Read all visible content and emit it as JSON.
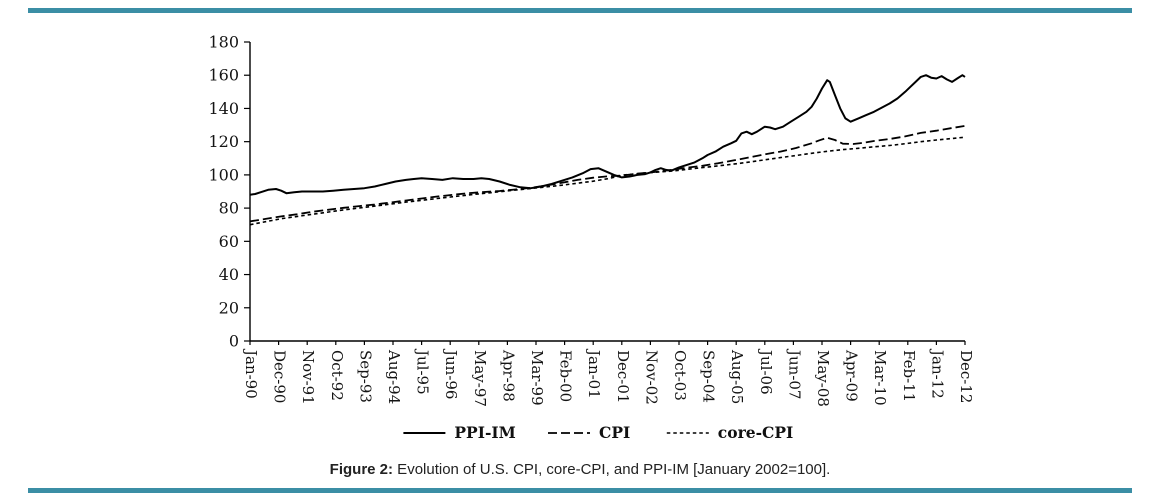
{
  "page": {
    "accent_color": "#3b8ea5"
  },
  "caption": {
    "prefix": "Figure 2:",
    "text": " Evolution of U.S. CPI, core-CPI, and PPI-IM [January 2002=100]."
  },
  "chart_data": {
    "type": "line",
    "title": "",
    "xlabel": "",
    "ylabel": "",
    "grid": false,
    "legend_position": "bottom",
    "ylim": [
      0,
      180
    ],
    "y_ticks": [
      0,
      20,
      40,
      60,
      80,
      100,
      120,
      140,
      160,
      180
    ],
    "x_unit": "months_since_Jan-90",
    "x_range": [
      0,
      275
    ],
    "x_tick_months": [
      0,
      11,
      22,
      33,
      44,
      55,
      66,
      77,
      88,
      99,
      110,
      121,
      132,
      143,
      154,
      165,
      176,
      187,
      198,
      209,
      220,
      231,
      242,
      253,
      264,
      275
    ],
    "x_tick_labels": [
      "Jan-90",
      "Dec-90",
      "Nov-91",
      "Oct-92",
      "Sep-93",
      "Aug-94",
      "Jul-95",
      "Jun-96",
      "May-97",
      "Apr-98",
      "Mar-99",
      "Feb-00",
      "Jan-01",
      "Dec-01",
      "Nov-02",
      "Oct-03",
      "Sep-04",
      "Aug-05",
      "Jul-06",
      "Jun-07",
      "May-08",
      "Apr-09",
      "Mar-10",
      "Feb-11",
      "Jan-12",
      "Dec-12"
    ],
    "series": [
      {
        "name": "PPI-IM",
        "style": "solid",
        "dash": "",
        "width": 2,
        "color": "#000000",
        "points": [
          [
            0,
            88
          ],
          [
            2,
            88.5
          ],
          [
            4,
            89.5
          ],
          [
            7,
            91
          ],
          [
            10,
            91.5
          ],
          [
            12,
            90.5
          ],
          [
            14,
            89
          ],
          [
            17,
            89.5
          ],
          [
            20,
            90
          ],
          [
            24,
            90
          ],
          [
            28,
            90
          ],
          [
            32,
            90.5
          ],
          [
            36,
            91
          ],
          [
            40,
            91.5
          ],
          [
            44,
            92
          ],
          [
            48,
            93
          ],
          [
            52,
            94.5
          ],
          [
            56,
            96
          ],
          [
            60,
            97
          ],
          [
            63,
            97.5
          ],
          [
            66,
            98
          ],
          [
            70,
            97.5
          ],
          [
            74,
            97
          ],
          [
            78,
            98
          ],
          [
            82,
            97.5
          ],
          [
            86,
            97.5
          ],
          [
            89,
            98
          ],
          [
            92,
            97.5
          ],
          [
            96,
            96
          ],
          [
            100,
            94
          ],
          [
            104,
            92.5
          ],
          [
            108,
            92
          ],
          [
            112,
            93
          ],
          [
            116,
            94.5
          ],
          [
            120,
            96.5
          ],
          [
            124,
            98.5
          ],
          [
            128,
            101
          ],
          [
            131,
            103.5
          ],
          [
            134,
            104
          ],
          [
            137,
            102
          ],
          [
            140,
            100
          ],
          [
            143,
            98.5
          ],
          [
            146,
            99
          ],
          [
            149,
            100
          ],
          [
            152,
            100.5
          ],
          [
            154,
            101.5
          ],
          [
            156,
            103
          ],
          [
            158,
            104
          ],
          [
            160,
            103
          ],
          [
            162,
            102.5
          ],
          [
            165,
            104.5
          ],
          [
            168,
            106
          ],
          [
            171,
            107.5
          ],
          [
            174,
            110
          ],
          [
            176,
            112
          ],
          [
            179,
            114
          ],
          [
            182,
            117
          ],
          [
            185,
            119
          ],
          [
            187,
            120.5
          ],
          [
            189,
            125
          ],
          [
            191,
            126
          ],
          [
            193,
            124.5
          ],
          [
            195,
            126
          ],
          [
            198,
            129
          ],
          [
            200,
            128.5
          ],
          [
            202,
            127.5
          ],
          [
            205,
            129
          ],
          [
            208,
            132
          ],
          [
            211,
            135
          ],
          [
            214,
            138
          ],
          [
            216,
            141
          ],
          [
            218,
            146
          ],
          [
            220,
            152
          ],
          [
            222,
            157
          ],
          [
            223,
            156
          ],
          [
            225,
            148
          ],
          [
            227,
            140
          ],
          [
            229,
            134
          ],
          [
            231,
            132
          ],
          [
            234,
            134
          ],
          [
            237,
            136
          ],
          [
            240,
            138
          ],
          [
            243,
            140.5
          ],
          [
            246,
            143
          ],
          [
            249,
            146
          ],
          [
            252,
            150
          ],
          [
            254,
            153
          ],
          [
            256,
            156
          ],
          [
            258,
            159
          ],
          [
            260,
            160
          ],
          [
            262,
            158.5
          ],
          [
            264,
            158
          ],
          [
            266,
            159.5
          ],
          [
            268,
            157.5
          ],
          [
            270,
            156
          ],
          [
            272,
            158
          ],
          [
            274,
            160
          ],
          [
            275,
            159
          ]
        ]
      },
      {
        "name": "CPI",
        "style": "dashed",
        "dash": "9 4",
        "width": 1.8,
        "color": "#000000",
        "points": [
          [
            0,
            72
          ],
          [
            6,
            73.5
          ],
          [
            12,
            75
          ],
          [
            18,
            76.3
          ],
          [
            24,
            77.8
          ],
          [
            30,
            79
          ],
          [
            36,
            80.2
          ],
          [
            42,
            81.2
          ],
          [
            48,
            82.2
          ],
          [
            54,
            83.4
          ],
          [
            60,
            84.6
          ],
          [
            66,
            85.8
          ],
          [
            72,
            87
          ],
          [
            78,
            88
          ],
          [
            84,
            89
          ],
          [
            90,
            89.7
          ],
          [
            96,
            90.3
          ],
          [
            102,
            91.2
          ],
          [
            108,
            92.2
          ],
          [
            114,
            93.7
          ],
          [
            120,
            95.3
          ],
          [
            126,
            97
          ],
          [
            132,
            98.3
          ],
          [
            138,
            99.2
          ],
          [
            143,
            99.6
          ],
          [
            146,
            100.2
          ],
          [
            150,
            100.9
          ],
          [
            156,
            101.8
          ],
          [
            162,
            103
          ],
          [
            168,
            104.3
          ],
          [
            174,
            105.5
          ],
          [
            180,
            107
          ],
          [
            186,
            108.7
          ],
          [
            192,
            110.5
          ],
          [
            198,
            112.4
          ],
          [
            204,
            114
          ],
          [
            210,
            116.2
          ],
          [
            216,
            119
          ],
          [
            219,
            120.8
          ],
          [
            222,
            122.3
          ],
          [
            225,
            121
          ],
          [
            228,
            118.8
          ],
          [
            232,
            118.6
          ],
          [
            236,
            119.3
          ],
          [
            240,
            120.4
          ],
          [
            246,
            121.6
          ],
          [
            252,
            123.2
          ],
          [
            258,
            125.3
          ],
          [
            264,
            126.6
          ],
          [
            270,
            128.2
          ],
          [
            275,
            129.5
          ]
        ]
      },
      {
        "name": "core-CPI",
        "style": "dotted",
        "dash": "3.5 3",
        "width": 1.6,
        "color": "#000000",
        "points": [
          [
            0,
            70
          ],
          [
            12,
            73.6
          ],
          [
            24,
            76.3
          ],
          [
            36,
            78.9
          ],
          [
            48,
            81.2
          ],
          [
            60,
            83.6
          ],
          [
            72,
            85.8
          ],
          [
            84,
            87.9
          ],
          [
            96,
            89.9
          ],
          [
            108,
            91.8
          ],
          [
            120,
            93.8
          ],
          [
            126,
            95
          ],
          [
            132,
            96.2
          ],
          [
            138,
            97.8
          ],
          [
            144,
            100
          ],
          [
            150,
            100.9
          ],
          [
            156,
            101.6
          ],
          [
            162,
            102.3
          ],
          [
            168,
            103.3
          ],
          [
            174,
            104.4
          ],
          [
            180,
            105.4
          ],
          [
            186,
            106.5
          ],
          [
            192,
            107.7
          ],
          [
            198,
            109.1
          ],
          [
            204,
            110.4
          ],
          [
            210,
            111.7
          ],
          [
            216,
            113
          ],
          [
            222,
            114.2
          ],
          [
            228,
            115.2
          ],
          [
            234,
            116
          ],
          [
            240,
            116.9
          ],
          [
            246,
            117.7
          ],
          [
            252,
            118.8
          ],
          [
            258,
            120
          ],
          [
            264,
            121
          ],
          [
            270,
            121.9
          ],
          [
            275,
            122.7
          ]
        ]
      }
    ]
  }
}
